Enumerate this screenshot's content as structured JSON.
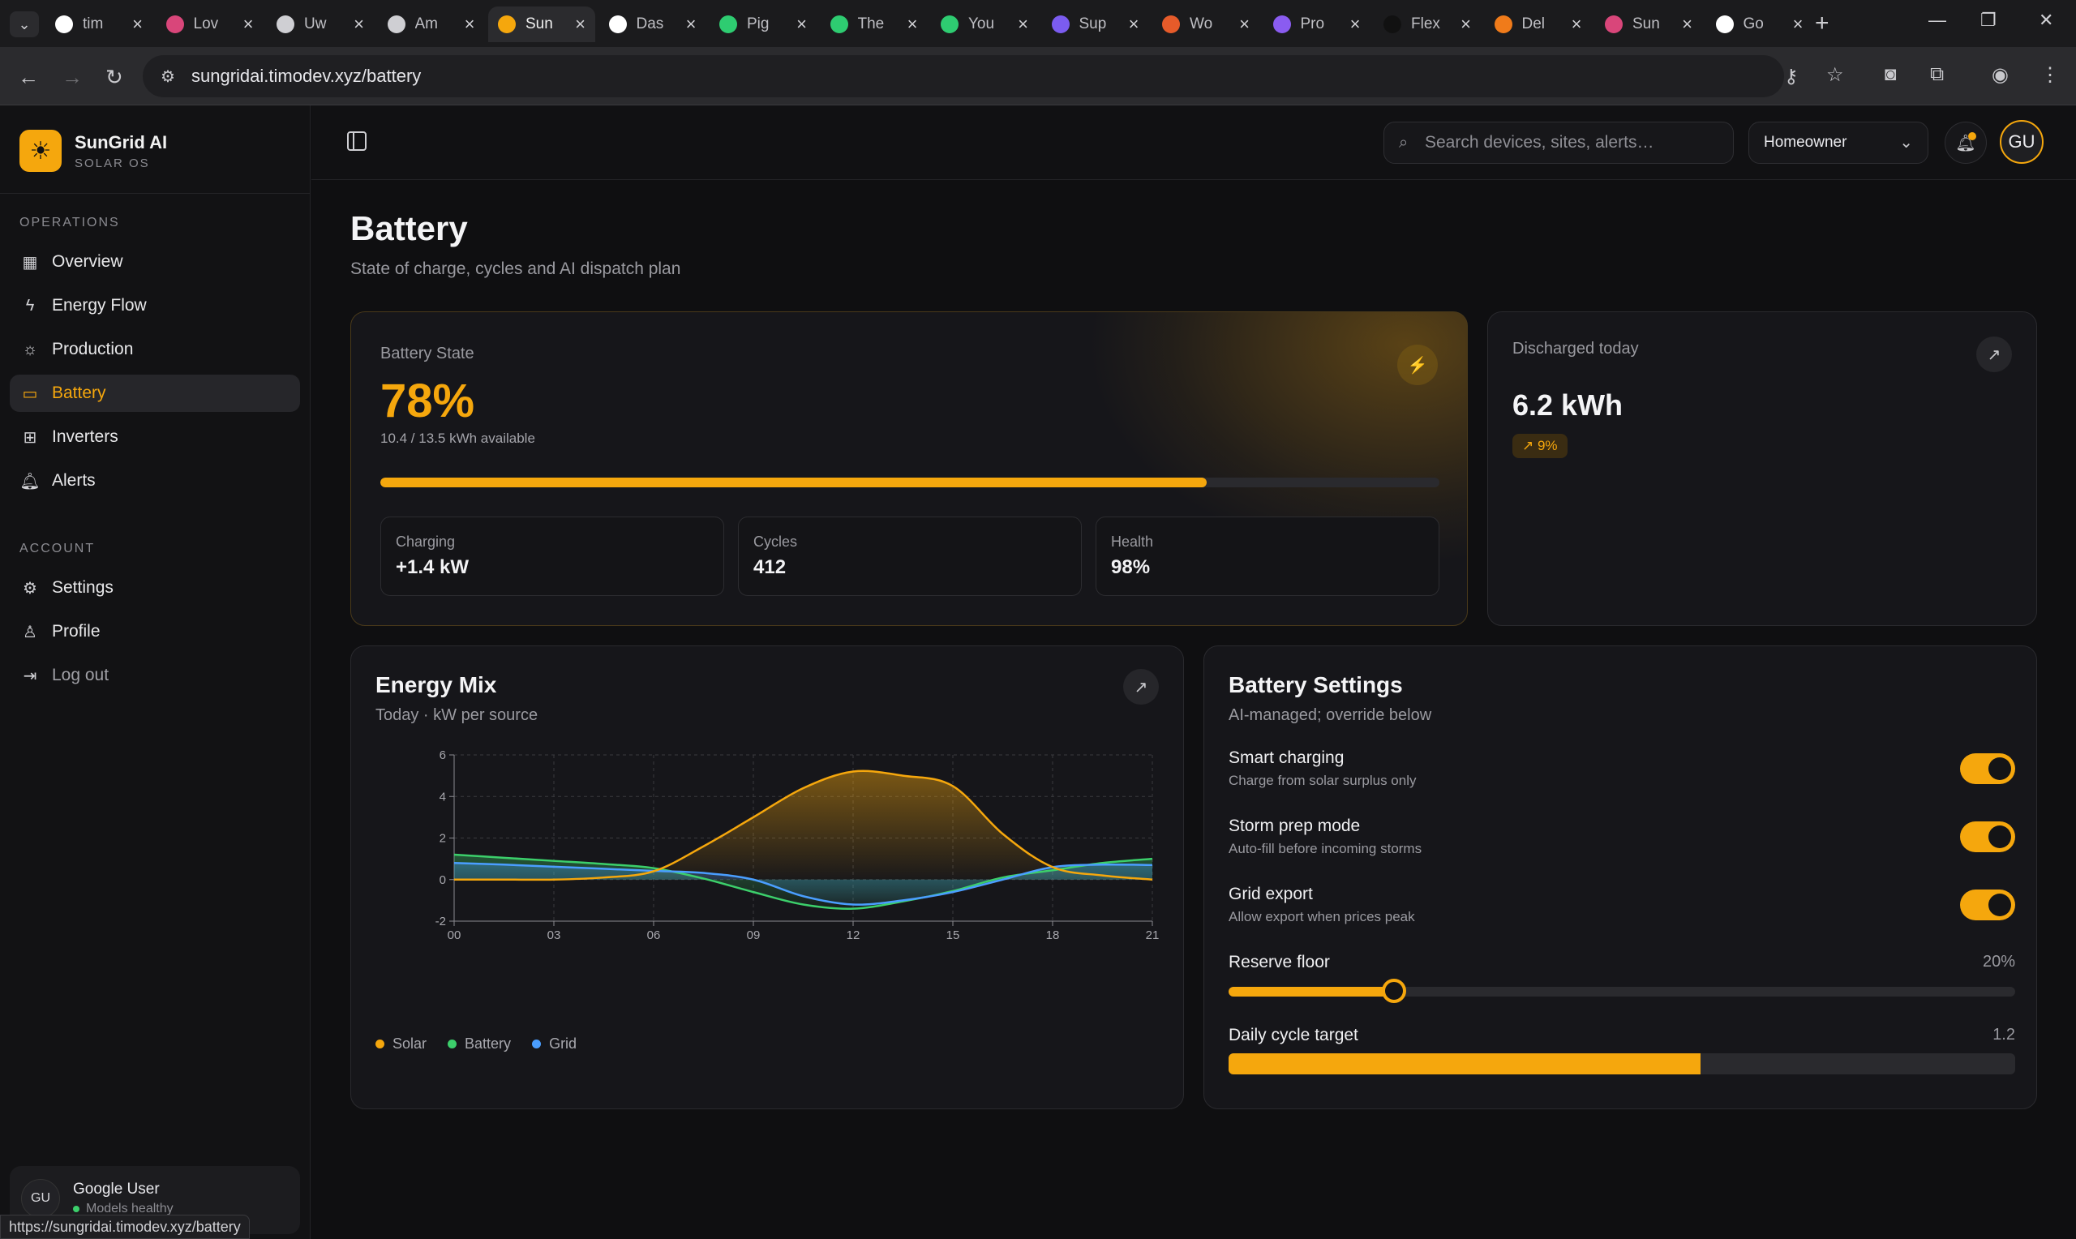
{
  "browser": {
    "tabs": [
      {
        "label": "tim",
        "color": "#ffffff",
        "active": false
      },
      {
        "label": "Lov",
        "color": "#d9467a",
        "active": false
      },
      {
        "label": "Uw",
        "color": "#cfcfd3",
        "active": false
      },
      {
        "label": "Am",
        "color": "#cfcfd3",
        "active": false
      },
      {
        "label": "Sun",
        "color": "#f5a70d",
        "active": true
      },
      {
        "label": "Das",
        "color": "#ffffff",
        "active": false
      },
      {
        "label": "Pig",
        "color": "#2ecc71",
        "active": false
      },
      {
        "label": "The",
        "color": "#2ecc71",
        "active": false
      },
      {
        "label": "You",
        "color": "#2ecc71",
        "active": false
      },
      {
        "label": "Sup",
        "color": "#7b5cf0",
        "active": false
      },
      {
        "label": "Wo",
        "color": "#e65b2a",
        "active": false
      },
      {
        "label": "Pro",
        "color": "#8a5cf0",
        "active": false
      },
      {
        "label": "Flex",
        "color": "#111111",
        "active": false
      },
      {
        "label": "Del",
        "color": "#f07b1a",
        "active": false
      },
      {
        "label": "Sun",
        "color": "#d9467a",
        "active": false
      },
      {
        "label": "Go",
        "color": "#ffffff",
        "active": false
      }
    ],
    "url": "sungridai.timodev.xyz/battery",
    "status_url": "https://sungridai.timodev.xyz/battery"
  },
  "brand": {
    "name": "SunGrid AI",
    "subtitle": "SOLAR OS"
  },
  "sidebar": {
    "operations_label": "OPERATIONS",
    "items": [
      {
        "label": "Overview",
        "icon": "grid-icon"
      },
      {
        "label": "Energy Flow",
        "icon": "bolt-icon"
      },
      {
        "label": "Production",
        "icon": "sun-icon"
      },
      {
        "label": "Battery",
        "icon": "battery-icon"
      },
      {
        "label": "Inverters",
        "icon": "chip-icon"
      },
      {
        "label": "Alerts",
        "icon": "bell-icon"
      }
    ],
    "account_label": "ACCOUNT",
    "account_items": [
      {
        "label": "Settings",
        "icon": "gear-icon"
      },
      {
        "label": "Profile",
        "icon": "user-icon"
      },
      {
        "label": "Log out",
        "icon": "logout-icon"
      }
    ],
    "user": {
      "initials": "GU",
      "name": "Google User",
      "status": "Models healthy"
    }
  },
  "topbar": {
    "search_placeholder": "Search devices, sites, alerts…",
    "role": "Homeowner",
    "avatar": "GU"
  },
  "page": {
    "title": "Battery",
    "subtitle": "State of charge, cycles and AI dispatch plan"
  },
  "battery_state": {
    "label": "Battery State",
    "percent": "78%",
    "charge_fraction": 0.78,
    "available": "10.4 / 13.5 kWh available",
    "stats": [
      {
        "label": "Charging",
        "value": "+1.4 kW"
      },
      {
        "label": "Cycles",
        "value": "412"
      },
      {
        "label": "Health",
        "value": "98%"
      }
    ]
  },
  "discharged": {
    "label": "Discharged today",
    "value": "6.2 kWh",
    "badge": "↗ 9%"
  },
  "energy_mix": {
    "title": "Energy Mix",
    "subtitle": "Today · kW per source"
  },
  "chart_data": {
    "type": "area",
    "x": [
      0,
      1.5,
      3,
      4.5,
      6,
      7.5,
      9,
      10.5,
      12,
      13.5,
      15,
      16.5,
      18,
      19.5,
      21
    ],
    "x_ticks": [
      "00",
      "03",
      "06",
      "09",
      "12",
      "15",
      "18",
      "21"
    ],
    "ylim": [
      -2,
      6
    ],
    "y_ticks": [
      "-2",
      "0",
      "2",
      "4",
      "6"
    ],
    "grid": true,
    "legend_position": "bottom-left",
    "series": [
      {
        "name": "Solar",
        "color": "#f5a70d",
        "values": [
          0,
          0,
          0,
          0.1,
          0.4,
          1.6,
          3.0,
          4.4,
          5.2,
          5.0,
          4.5,
          2.2,
          0.6,
          0.2,
          0
        ]
      },
      {
        "name": "Battery",
        "color": "#3ccf6b",
        "values": [
          1.2,
          1.05,
          0.9,
          0.75,
          0.55,
          0.05,
          -0.6,
          -1.2,
          -1.4,
          -1.05,
          -0.55,
          0.1,
          0.45,
          0.8,
          1.0
        ]
      },
      {
        "name": "Grid",
        "color": "#4a9eff",
        "values": [
          0.8,
          0.72,
          0.62,
          0.52,
          0.42,
          0.32,
          0.0,
          -0.8,
          -1.2,
          -1.0,
          -0.6,
          0.0,
          0.6,
          0.72,
          0.7
        ]
      }
    ]
  },
  "settings": {
    "title": "Battery Settings",
    "subtitle": "AI-managed; override below",
    "toggles": [
      {
        "title": "Smart charging",
        "desc": "Charge from solar surplus only",
        "on": true
      },
      {
        "title": "Storm prep mode",
        "desc": "Auto-fill before incoming storms",
        "on": true
      },
      {
        "title": "Grid export",
        "desc": "Allow export when prices peak",
        "on": true
      }
    ],
    "reserve": {
      "label": "Reserve floor",
      "value": "20%",
      "fraction": 0.21
    },
    "cycle": {
      "label": "Daily cycle target",
      "value": "1.2",
      "fraction": 0.6
    }
  }
}
